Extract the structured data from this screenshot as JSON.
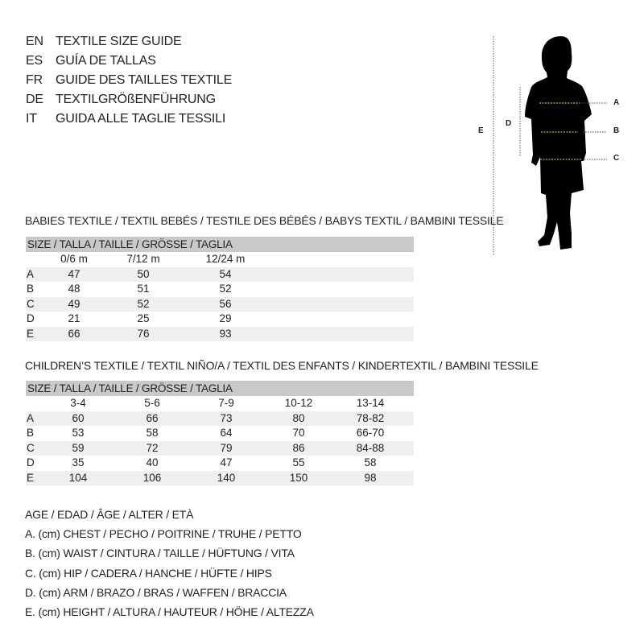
{
  "languages": [
    {
      "code": "EN",
      "title": "TEXTILE SIZE GUIDE"
    },
    {
      "code": "ES",
      "title": "GUÍA DE TALLAS"
    },
    {
      "code": "FR",
      "title": "GUIDE DES TAILLES TEXTILE"
    },
    {
      "code": "DE",
      "title": "TEXTILGRÖßENFÜHRUNG"
    },
    {
      "code": "IT",
      "title": "GUIDA ALLE TAGLIE TESSILI"
    }
  ],
  "babies": {
    "title": "BABIES TEXTILE / TEXTIL BEBÉS / TESTILE DES BÉBÉS / BABYS TEXTIL / BAMBINI TESSILE",
    "header": "SIZE / TALLA / TAILLE / GRÖSSE / TAGLIA",
    "columns": [
      "0/6 m",
      "7/12 m",
      "12/24 m"
    ],
    "rows": [
      {
        "label": "A",
        "values": [
          "47",
          "50",
          "54"
        ]
      },
      {
        "label": "B",
        "values": [
          "48",
          "51",
          "52"
        ]
      },
      {
        "label": "C",
        "values": [
          "49",
          "52",
          "56"
        ]
      },
      {
        "label": "D",
        "values": [
          "21",
          "25",
          "29"
        ]
      },
      {
        "label": "E",
        "values": [
          "66",
          "76",
          "93"
        ]
      }
    ]
  },
  "children": {
    "title": "CHILDREN’S TEXTILE / TEXTIL NIÑO/A / TEXTIL DES ENFANTS / KINDERTEXTIL / BAMBINI TESSILE",
    "header": "SIZE / TALLA / TAILLE / GRÖSSE / TAGLIA",
    "columns": [
      "3-4",
      "5-6",
      "7-9",
      "10-12",
      "13-14"
    ],
    "rows": [
      {
        "label": "A",
        "values": [
          "60",
          "66",
          "73",
          "80",
          "78-82"
        ]
      },
      {
        "label": "B",
        "values": [
          "53",
          "58",
          "64",
          "70",
          "66-70"
        ]
      },
      {
        "label": "C",
        "values": [
          "59",
          "72",
          "79",
          "86",
          "84-88"
        ]
      },
      {
        "label": "D",
        "values": [
          "35",
          "40",
          "47",
          "55",
          "58"
        ]
      },
      {
        "label": "E",
        "values": [
          "104",
          "106",
          "140",
          "150",
          "98"
        ]
      }
    ]
  },
  "legend": [
    "AGE / EDAD / ÂGE / ALTER / ETÀ",
    "A. (cm) CHEST / PECHO / POITRINE / TRUHE / PETTO",
    "B. (cm) WAIST / CINTURA / TAILLE / HÜFTUNG / VITA",
    "C. (cm) HIP / CADERA / HANCHE / HÜFTE / HIPS",
    "D. (cm) ARM / BRAZO / BRAS / WAFFEN / BRACCIA",
    "E. (cm) HEIGHT / ALTURA / HAUTEUR / HÖHE / ALTEZZA"
  ],
  "figure": {
    "labels": {
      "A": "A",
      "B": "B",
      "C": "C",
      "D": "D",
      "E": "E"
    },
    "measure_line_color": "#e8e060"
  }
}
